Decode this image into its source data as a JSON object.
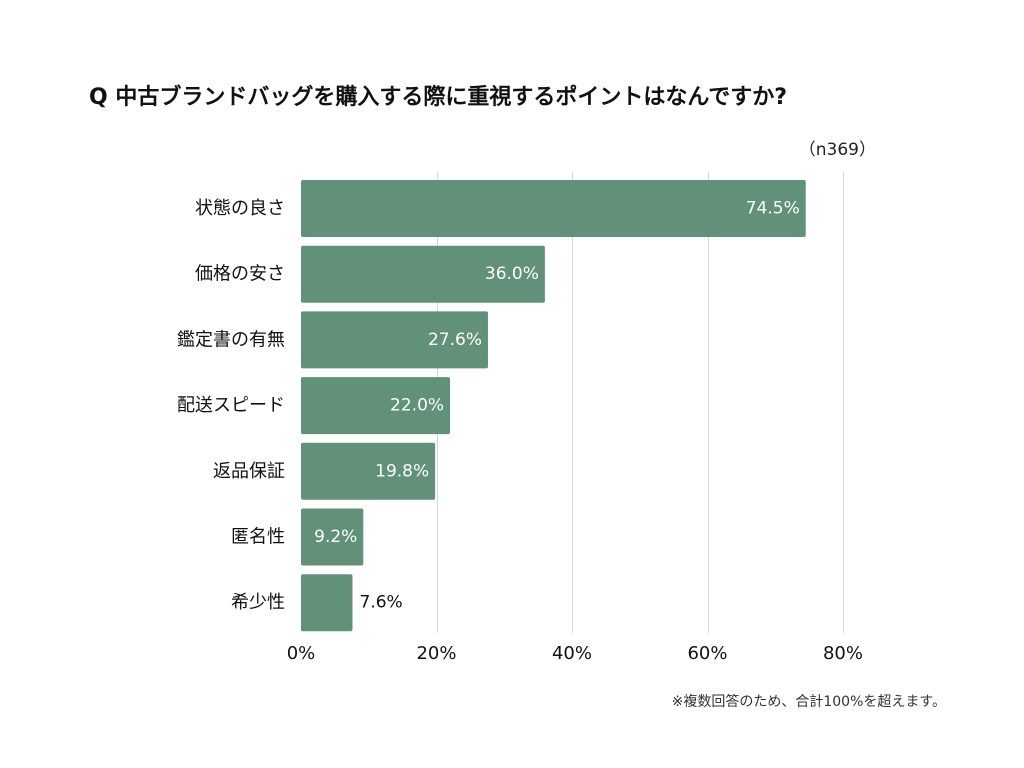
{
  "chart_data": {
    "type": "bar",
    "orientation": "horizontal",
    "title": "Q 中古ブランドバッグを購入する際に重視するポイントはなんですか?",
    "sample_size_label": "（n369）",
    "categories": [
      "状態の良さ",
      "価格の安さ",
      "鑑定書の有無",
      "配送スピード",
      "返品保証",
      "匿名性",
      "希少性"
    ],
    "values": [
      74.5,
      36.0,
      27.6,
      22.0,
      19.8,
      9.2,
      7.6
    ],
    "value_labels": [
      "74.5%",
      "36.0%",
      "27.6%",
      "22.0%",
      "19.8%",
      "9.2%",
      "7.6%"
    ],
    "xlim": [
      0,
      80
    ],
    "x_ticks": [
      0,
      20,
      40,
      60,
      80
    ],
    "x_tick_labels": [
      "0%",
      "20%",
      "40%",
      "60%",
      "80%"
    ],
    "grid": true,
    "legend": "none",
    "note": "※複数回答のため、合計100%を超えます。"
  },
  "colors": {
    "bar": "#62917a",
    "label_inside": "#ffffff",
    "label_outside": "#111111",
    "gridline": "#d6d6d6",
    "background": "#ffffff"
  }
}
